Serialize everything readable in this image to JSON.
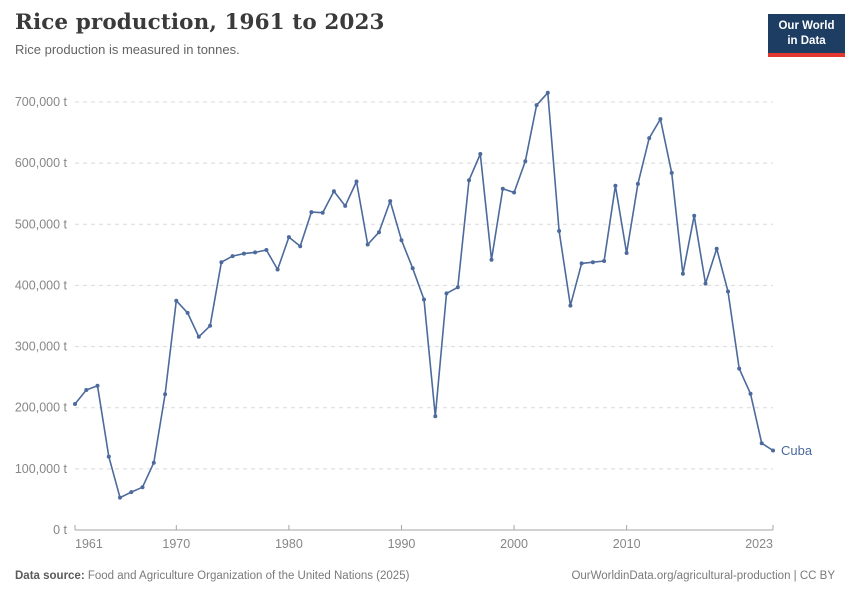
{
  "header": {
    "title": "Rice production, 1961 to 2023",
    "subtitle": "Rice production is measured in tonnes.",
    "logo": {
      "line1": "Our World",
      "line2": "in Data"
    }
  },
  "chart_data": {
    "type": "line",
    "title": "Rice production, 1961 to 2023",
    "unit": "tonnes",
    "xlim": [
      1961,
      2023
    ],
    "ylim": [
      0,
      700000
    ],
    "grid": "horizontal-dashed",
    "legend_position": "end-of-line",
    "x_ticks": [
      {
        "value": 1961,
        "label": "1961"
      },
      {
        "value": 1970,
        "label": "1970"
      },
      {
        "value": 1980,
        "label": "1980"
      },
      {
        "value": 1990,
        "label": "1990"
      },
      {
        "value": 2000,
        "label": "2000"
      },
      {
        "value": 2010,
        "label": "2010"
      },
      {
        "value": 2023,
        "label": "2023"
      }
    ],
    "y_ticks": [
      {
        "value": 0,
        "label": "0 t"
      },
      {
        "value": 100000,
        "label": "100,000 t"
      },
      {
        "value": 200000,
        "label": "200,000 t"
      },
      {
        "value": 300000,
        "label": "300,000 t"
      },
      {
        "value": 400000,
        "label": "400,000 t"
      },
      {
        "value": 500000,
        "label": "500,000 t"
      },
      {
        "value": 600000,
        "label": "600,000 t"
      },
      {
        "value": 700000,
        "label": "700,000 t"
      }
    ],
    "series": [
      {
        "name": "Cuba",
        "color": "#4c6a9c",
        "x_start": 1961,
        "x_step": 1,
        "values": [
          206000,
          229000,
          236000,
          120000,
          53000,
          62000,
          70000,
          110000,
          222000,
          375000,
          355000,
          316000,
          334000,
          438000,
          448000,
          452000,
          454000,
          458000,
          426000,
          479000,
          464000,
          520000,
          519000,
          554000,
          530000,
          570000,
          467000,
          487000,
          538000,
          474000,
          428000,
          377000,
          186000,
          387000,
          397000,
          572000,
          615000,
          442000,
          558000,
          552000,
          603000,
          695000,
          715000,
          489000,
          367000,
          436000,
          438000,
          440000,
          563000,
          453000,
          566000,
          641000,
          672000,
          584000,
          419000,
          514000,
          403000,
          460000,
          390000,
          264000,
          223000,
          142000,
          130000
        ]
      }
    ]
  },
  "footer": {
    "source_label": "Data source:",
    "source_text": " Food and Agriculture Organization of the United Nations (2025)",
    "link_text": "OurWorldinData.org/agricultural-production | CC BY"
  },
  "colors": {
    "line": "#4c6a9c",
    "grid": "#dadada",
    "axis": "#a6a6a6",
    "tick_text": "#878787",
    "title_text": "#3a3a3a",
    "logo_bg": "#1d3d63",
    "logo_red": "#e2372f"
  }
}
